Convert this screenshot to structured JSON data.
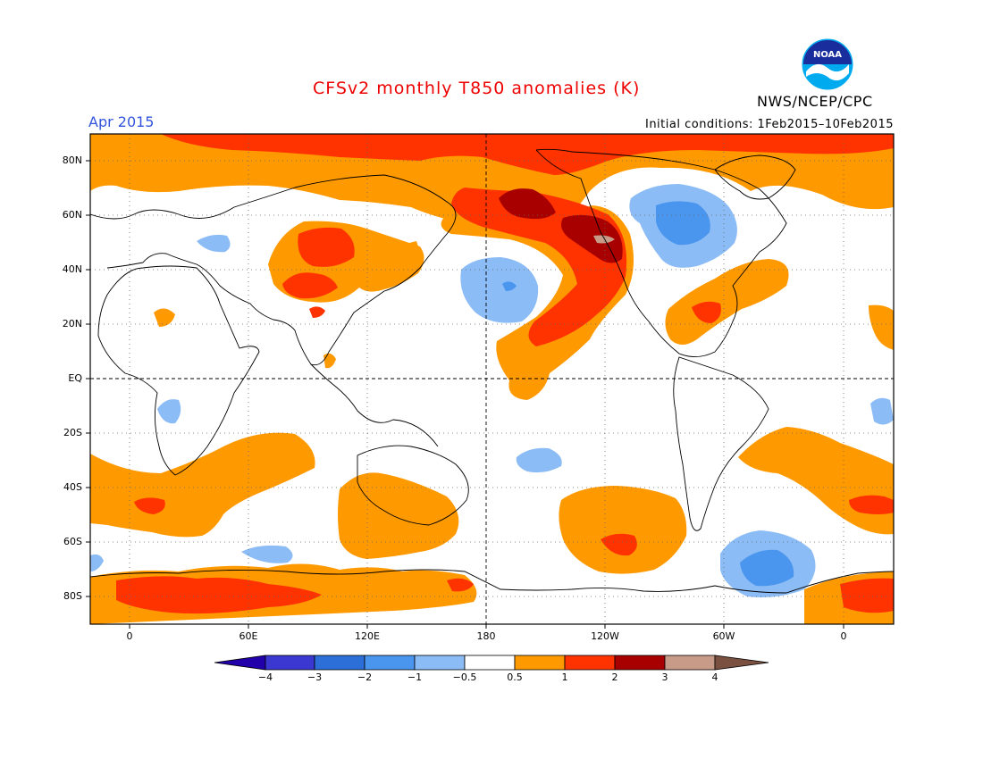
{
  "header": {
    "title": "CFSv2 monthly T850 anomalies (K)",
    "month": "Apr 2015",
    "initial_conditions": "Initial conditions: 1Feb2015–10Feb2015",
    "agency": "NWS/NCEP/CPC",
    "logo_text": "NOAA"
  },
  "axes": {
    "lat_labels": [
      "80N",
      "60N",
      "40N",
      "20N",
      "EQ",
      "20S",
      "40S",
      "60S",
      "80S"
    ],
    "lon_labels": [
      "0",
      "60E",
      "120E",
      "180",
      "120W",
      "60W",
      "0"
    ]
  },
  "colorbar": {
    "ticks": [
      "−4",
      "−3",
      "−2",
      "−1",
      "−0.5",
      "0.5",
      "1",
      "2",
      "3",
      "4"
    ],
    "colors": [
      "#2200aa",
      "#3a38d0",
      "#2c6fd8",
      "#4a95ee",
      "#8bbcf5",
      "#ffffff",
      "#ff9900",
      "#ff3300",
      "#a80000",
      "#c89a88",
      "#7a5040"
    ]
  },
  "legend_colors": {
    "orange": "#ff9900",
    "red": "#ff3300",
    "darkred": "#a80000",
    "tan": "#c89a88",
    "lightblue": "#8bbcf5",
    "blue": "#4a95ee"
  }
}
